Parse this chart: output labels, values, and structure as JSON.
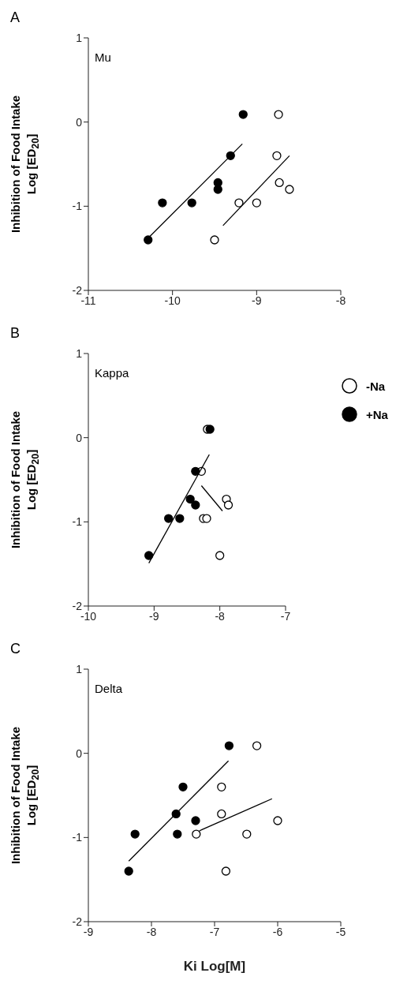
{
  "chart_data": [
    {
      "type": "scatter",
      "title": "A",
      "subtitle": "Mu",
      "ylabel": "Inhibition of Food Intake\nLog [ED$_{20}$]",
      "xlim": [
        -11,
        -8
      ],
      "xticks": [
        -11,
        -10,
        -9,
        -8
      ],
      "ylim": [
        -2,
        1
      ],
      "yticks": [
        -2,
        -1,
        0,
        1
      ],
      "marker": "circle",
      "legend": false,
      "series": [
        {
          "color": "#ffffff",
          "x": [
            -9.5,
            -9.21,
            -9.0,
            -8.76,
            -8.74,
            -8.73,
            -8.61
          ],
          "values": [
            -1.4,
            -0.96,
            -0.96,
            -0.4,
            0.09,
            -0.72,
            -0.8
          ]
        },
        {
          "color": "#000000",
          "x": [
            -10.29,
            -10.12,
            -9.77,
            -9.31,
            -9.46,
            -9.46,
            -9.16
          ],
          "values": [
            -1.4,
            -0.96,
            -0.96,
            -0.4,
            -0.72,
            -0.8,
            0.09
          ]
        },
        {
          "type": "line",
          "marker": "none",
          "color": "#000000",
          "x": [
            -10.28,
            -9.17
          ],
          "values": [
            -1.37,
            -0.26
          ]
        },
        {
          "type": "line",
          "marker": "none",
          "color": "#000000",
          "x": [
            -9.4,
            -8.61
          ],
          "values": [
            -1.23,
            -0.4
          ]
        }
      ]
    },
    {
      "type": "scatter",
      "title": "B",
      "subtitle": "Kappa",
      "ylabel": "Inhibition of Food Intake\nLog [ED$_{20}$]",
      "xlim": [
        -10,
        -7
      ],
      "xticks": [
        -10,
        -9,
        -8,
        -7
      ],
      "ylim": [
        -2,
        1
      ],
      "yticks": [
        -2,
        -1,
        0,
        1
      ],
      "marker": "circle",
      "legend": "top right",
      "series": [
        {
          "name": "-Na",
          "color": "#ffffff",
          "x": [
            -8.19,
            -8.28,
            -8.25,
            -8.2,
            -8.0,
            -7.9,
            -7.87
          ],
          "values": [
            0.1,
            -0.4,
            -0.96,
            -0.96,
            -1.4,
            -0.73,
            -0.8
          ]
        },
        {
          "name": "+Na",
          "color": "#000000",
          "x": [
            -9.08,
            -8.78,
            -8.61,
            -8.45,
            -8.37,
            -8.37,
            -8.15
          ],
          "values": [
            -1.4,
            -0.96,
            -0.96,
            -0.73,
            -0.4,
            -0.8,
            0.1
          ]
        },
        {
          "type": "line",
          "marker": "none",
          "color": "#000000",
          "x": [
            -9.08,
            -8.16
          ],
          "values": [
            -1.49,
            -0.2
          ]
        },
        {
          "type": "line",
          "marker": "none",
          "color": "#000000",
          "x": [
            -8.28,
            -7.96
          ],
          "values": [
            -0.57,
            -0.87
          ]
        }
      ]
    },
    {
      "type": "scatter",
      "title": "C",
      "subtitle": "Delta",
      "xlabel": "Ki Log[M]",
      "ylabel": "Inhibition of Food Intake\nLog [ED$_{20}$]",
      "xlim": [
        -9,
        -5
      ],
      "xticks": [
        -9,
        -8,
        -7,
        -6,
        -5
      ],
      "ylim": [
        -2,
        1
      ],
      "yticks": [
        -2,
        -1,
        0,
        1
      ],
      "marker": "circle",
      "legend": false,
      "series": [
        {
          "color": "#ffffff",
          "x": [
            -7.29,
            -6.89,
            -6.89,
            -6.82,
            -6.49,
            -6.33,
            -6.0
          ],
          "values": [
            -0.96,
            -0.4,
            -0.72,
            -1.4,
            -0.96,
            0.09,
            -0.8
          ]
        },
        {
          "color": "#000000",
          "x": [
            -8.36,
            -8.26,
            -7.61,
            -7.59,
            -7.5,
            -7.3,
            -6.77
          ],
          "values": [
            -1.4,
            -0.96,
            -0.72,
            -0.96,
            -0.4,
            -0.8,
            0.09
          ]
        },
        {
          "type": "line",
          "marker": "none",
          "color": "#000000",
          "x": [
            -8.36,
            -6.78
          ],
          "values": [
            -1.28,
            -0.09
          ]
        },
        {
          "type": "line",
          "marker": "none",
          "color": "#000000",
          "x": [
            -7.24,
            -6.09
          ],
          "values": [
            -0.92,
            -0.54
          ]
        }
      ]
    }
  ]
}
